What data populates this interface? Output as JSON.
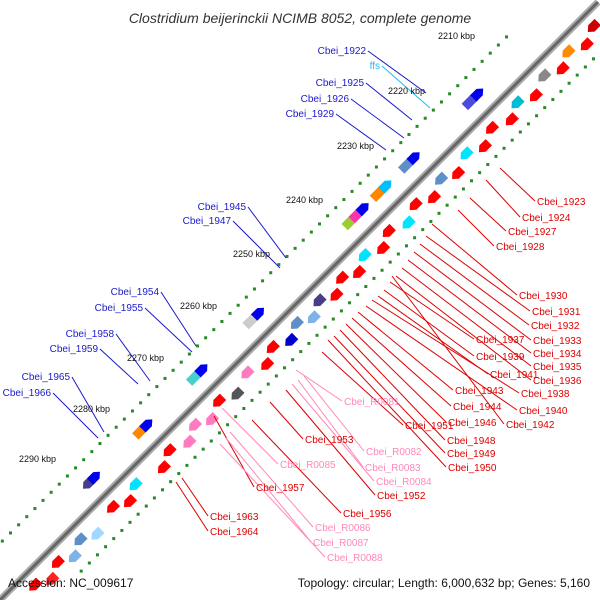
{
  "header": {
    "title": "Clostridium beijerinckii NCIMB 8052, complete genome"
  },
  "footer": {
    "accession": "Accession: NC_009617",
    "summary": "Topology: circular; Length: 6,000,632 bp; Genes: 5,160"
  },
  "ticks": [
    {
      "label": "2210 kbp"
    },
    {
      "label": "2220 kbp"
    },
    {
      "label": "2230 kbp"
    },
    {
      "label": "2240 kbp"
    },
    {
      "label": "2250 kbp"
    },
    {
      "label": "2260 kbp"
    },
    {
      "label": "2270 kbp"
    },
    {
      "label": "2280 kbp"
    },
    {
      "label": "2290 kbp"
    }
  ],
  "colors": {
    "forward_label": "#1a1acc",
    "reverse_label": "#dd0000",
    "rna_label": "#ff88bb",
    "ffs_label": "#22bbee",
    "backbone": "#888888",
    "gene_red": "#ff0000",
    "gene_blue": "#0000ee",
    "tick_green": "#2a8a2a"
  },
  "forward_labels": [
    {
      "text": "Cbei_1922"
    },
    {
      "text": "ffs"
    },
    {
      "text": "Cbei_1925"
    },
    {
      "text": "Cbei_1926"
    },
    {
      "text": "Cbei_1929"
    },
    {
      "text": "Cbei_1945"
    },
    {
      "text": "Cbei_1947"
    },
    {
      "text": "Cbei_1954"
    },
    {
      "text": "Cbei_1955"
    },
    {
      "text": "Cbei_1958"
    },
    {
      "text": "Cbei_1959"
    },
    {
      "text": "Cbei_1965"
    },
    {
      "text": "Cbei_1966"
    }
  ],
  "reverse_labels": [
    {
      "text": "Cbei_1923"
    },
    {
      "text": "Cbei_1924"
    },
    {
      "text": "Cbei_1927"
    },
    {
      "text": "Cbei_1928"
    },
    {
      "text": "Cbei_1930"
    },
    {
      "text": "Cbei_1931"
    },
    {
      "text": "Cbei_1932"
    },
    {
      "text": "Cbei_1933"
    },
    {
      "text": "Cbei_1934"
    },
    {
      "text": "Cbei_1935"
    },
    {
      "text": "Cbei_1936"
    },
    {
      "text": "Cbei_1937"
    },
    {
      "text": "Cbei_1939"
    },
    {
      "text": "Cbei_1941"
    },
    {
      "text": "Cbei_1938"
    },
    {
      "text": "Cbei_1940"
    },
    {
      "text": "Cbei_1943"
    },
    {
      "text": "Cbei_1944"
    },
    {
      "text": "Cbei_1946"
    },
    {
      "text": "Cbei_1942"
    },
    {
      "text": "Cbei_R0081"
    },
    {
      "text": "Cbei_1951"
    },
    {
      "text": "Cbei_1948"
    },
    {
      "text": "Cbei_1953"
    },
    {
      "text": "Cbei_1949"
    },
    {
      "text": "Cbei_R0082"
    },
    {
      "text": "Cbei_1950"
    },
    {
      "text": "Cbei_R0085"
    },
    {
      "text": "Cbei_R0083"
    },
    {
      "text": "Cbei_R0084"
    },
    {
      "text": "Cbei_1957"
    },
    {
      "text": "Cbei_1952"
    },
    {
      "text": "Cbei_1956"
    },
    {
      "text": "Cbei_1963"
    },
    {
      "text": "Cbei_R0086"
    },
    {
      "text": "Cbei_1964"
    },
    {
      "text": "Cbei_R0087"
    },
    {
      "text": "Cbei_R0088"
    }
  ]
}
